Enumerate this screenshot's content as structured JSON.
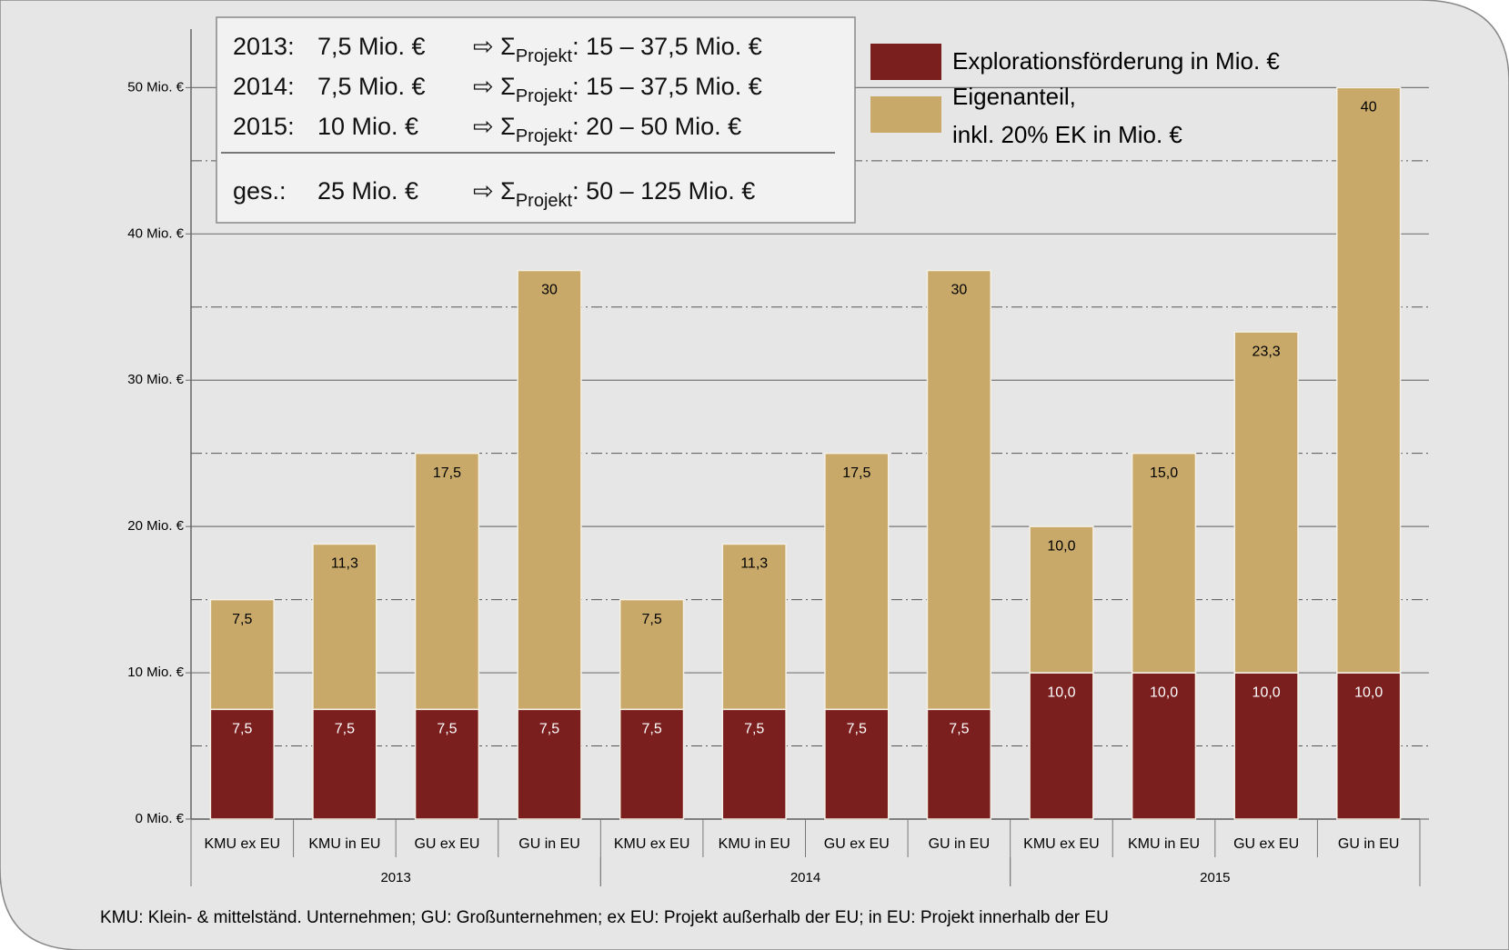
{
  "chart_data": {
    "type": "stacked_bar",
    "categories": [
      "KMU ex EU",
      "KMU in EU",
      "GU ex EU",
      "GU in EU",
      "KMU ex EU",
      "KMU in EU",
      "GU ex EU",
      "GU in EU",
      "KMU ex EU",
      "KMU in EU",
      "GU ex EU",
      "GU in EU"
    ],
    "groups": [
      {
        "label": "2013",
        "size": 4
      },
      {
        "label": "2014",
        "size": 4
      },
      {
        "label": "2015",
        "size": 4
      }
    ],
    "series": [
      {
        "name": [
          "Explorationsförderung  in Mio. €"
        ],
        "color": "#7b1e1e",
        "values": [
          7.5,
          7.5,
          7.5,
          7.5,
          7.5,
          7.5,
          7.5,
          7.5,
          10,
          10,
          10,
          10
        ],
        "value_labels": [
          "7,5",
          "7,5",
          "7,5",
          "7,5",
          "7,5",
          "7,5",
          "7,5",
          "7,5",
          "10,0",
          "10,0",
          "10,0",
          "10,0"
        ]
      },
      {
        "name": [
          "Eigenanteil,",
          "inkl. 20% EK in Mio. €"
        ],
        "color": "#c8a96a",
        "values": [
          7.5,
          11.3,
          17.5,
          30,
          7.5,
          11.3,
          17.5,
          30,
          10,
          15,
          23.3,
          40
        ],
        "value_labels": [
          "7,5",
          "11,3",
          "17,5",
          "30",
          "7,5",
          "11,3",
          "17,5",
          "30",
          "10,0",
          "15,0",
          "23,3",
          "40"
        ]
      }
    ],
    "ylim": [
      0,
      54
    ],
    "yticks": [
      {
        "value": 0,
        "label": "0 Mio. €"
      },
      {
        "value": 10,
        "label": "10 Mio. €"
      },
      {
        "value": 20,
        "label": "20 Mio. €"
      },
      {
        "value": 30,
        "label": "30 Mio. €"
      },
      {
        "value": 40,
        "label": "40 Mio. €"
      },
      {
        "value": 50,
        "label": "50 Mio. €"
      }
    ],
    "minor_gridlines": [
      5,
      15,
      25,
      35,
      45
    ],
    "grid": true,
    "legend_position": "top-right",
    "info_box": {
      "rows": [
        {
          "year": "2013:",
          "amount": "7,5 Mio. €",
          "symbol": "⇨ Σ",
          "sub": "Projekt",
          "range": ": 15 – 37,5 Mio. €"
        },
        {
          "year": "2014:",
          "amount": "7,5 Mio. €",
          "symbol": "⇨ Σ",
          "sub": "Projekt",
          "range": ": 15 – 37,5 Mio. €"
        },
        {
          "year": "2015:",
          "amount": "10  Mio. €",
          "symbol": "⇨ Σ",
          "sub": "Projekt",
          "range": ": 20 – 50 Mio.  €"
        }
      ],
      "total": {
        "year": "ges.:",
        "amount": "25 Mio. €",
        "symbol": "⇨ Σ",
        "sub": "Projekt",
        "range": ": 50 – 125 Mio. €"
      }
    },
    "footnote": "KMU: Klein- & mittelständ. Unternehmen;  GU: Großunternehmen;  ex EU: Projekt außerhalb der EU;  in EU: Projekt innerhalb der EU"
  }
}
